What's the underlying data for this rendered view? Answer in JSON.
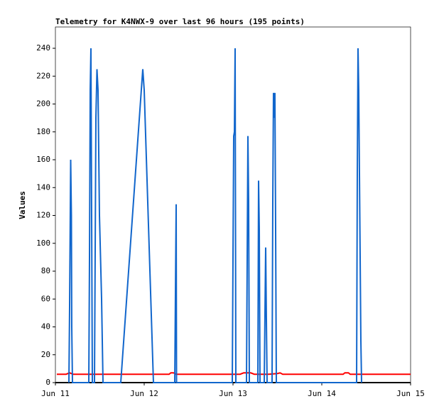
{
  "chart_data": {
    "type": "line",
    "title": "Telemetry for K4NWX-9 over last 96 hours (195 points)",
    "y_label": "Values",
    "xlim": [
      11,
      15
    ],
    "ylim": [
      0,
      255.3
    ],
    "xticks": [
      {
        "value": 11,
        "label": "Jun 11"
      },
      {
        "value": 12,
        "label": "Jun 12"
      },
      {
        "value": 13,
        "label": "Jun 13"
      },
      {
        "value": 14,
        "label": "Jun 14"
      },
      {
        "value": 15,
        "label": "Jun 15"
      }
    ],
    "yticks": [
      0,
      20,
      40,
      60,
      80,
      100,
      120,
      140,
      160,
      180,
      200,
      220,
      240
    ],
    "grid": false,
    "series": [
      {
        "color": "#ff0000",
        "x": [
          11.016,
          11.12,
          11.16,
          11.2,
          12.28,
          12.3,
          12.33,
          12.36,
          13.0,
          13.08,
          13.12,
          13.2,
          13.24,
          13.4,
          13.5,
          13.53,
          13.56,
          14.24,
          14.26,
          14.3,
          14.32,
          15.0
        ],
        "values": [
          6,
          6,
          7,
          6,
          6,
          7,
          7,
          6,
          6,
          6,
          7,
          7,
          6,
          6,
          6.5,
          7,
          6,
          6,
          7,
          7,
          6,
          6
        ]
      },
      {
        "color": "#000000",
        "x": [
          11,
          15
        ],
        "values": [
          0,
          0
        ]
      },
      {
        "color": "#1166cc",
        "x": [
          11.152,
          11.16,
          11.172,
          11.18,
          11.184,
          11.192,
          11.376,
          11.384,
          11.392,
          11.4,
          11.408,
          11.416,
          11.44,
          11.456,
          11.468,
          11.48,
          11.496,
          11.52,
          11.536,
          11.736,
          11.984,
          12.0,
          12.104,
          12.344,
          12.352,
          12.36,
          12.364,
          12.992,
          13.0,
          13.008,
          13.016,
          13.024,
          13.032,
          13.152,
          13.16,
          13.168,
          13.176,
          13.184,
          13.28,
          13.288,
          13.296,
          13.304,
          13.352,
          13.36,
          13.368,
          13.376,
          13.384,
          13.44,
          13.448,
          13.456,
          13.464,
          13.472,
          13.48,
          13.488,
          14.392,
          14.4,
          14.408,
          14.416,
          14.424,
          14.432,
          14.44,
          14.448
        ],
        "values": [
          0,
          55,
          160,
          120,
          40,
          0,
          0,
          90,
          210,
          240,
          120,
          0,
          0,
          190,
          225,
          210,
          120,
          60,
          0,
          0,
          225,
          210,
          0,
          0,
          65,
          128,
          0,
          0,
          90,
          177,
          180,
          240,
          0,
          0,
          90,
          177,
          130,
          0,
          0,
          145,
          110,
          0,
          0,
          50,
          97,
          45,
          0,
          0,
          130,
          208,
          190,
          208,
          110,
          0,
          0,
          150,
          240,
          210,
          150,
          90,
          30,
          0
        ]
      }
    ]
  }
}
